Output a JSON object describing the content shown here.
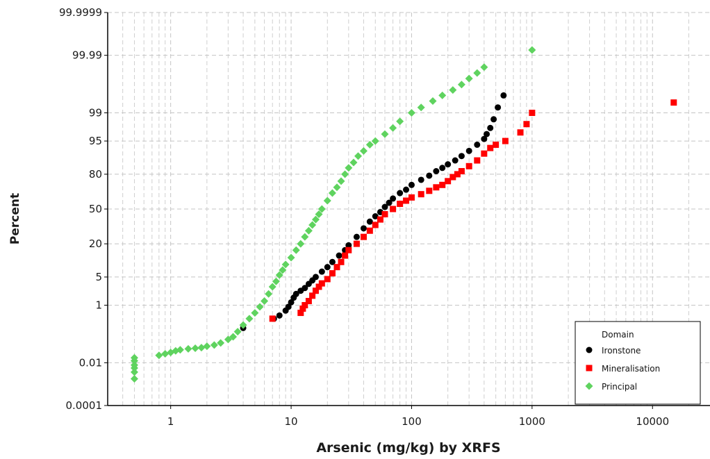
{
  "chart_data": {
    "type": "scatter",
    "title": "",
    "xlabel": "Arsenic (mg/kg) by XRFS",
    "ylabel": "Percent",
    "x_scale": "log",
    "y_scale": "probability",
    "xlim": [
      0.3,
      30000
    ],
    "ylim": [
      0.0001,
      99.9999
    ],
    "x_ticks": [
      1,
      10,
      100,
      1000,
      10000
    ],
    "x_tick_labels": [
      "1",
      "10",
      "100",
      "1000",
      "10000"
    ],
    "y_ticks": [
      0.0001,
      0.01,
      1,
      5,
      20,
      50,
      80,
      95,
      99,
      99.99,
      99.9999
    ],
    "y_tick_labels": [
      "0.0001",
      "0.01",
      "1",
      "5",
      "20",
      "50",
      "80",
      "95",
      "99",
      "99.99",
      "99.9999"
    ],
    "grid": true,
    "legend": {
      "title": "Domain",
      "position": "bottom-right"
    },
    "series": [
      {
        "name": "Ironstone",
        "color": "#000000",
        "marker": "circle",
        "points": [
          [
            4,
            0.2
          ],
          [
            7.2,
            0.4
          ],
          [
            8,
            0.5
          ],
          [
            9,
            0.7
          ],
          [
            9.5,
            0.9
          ],
          [
            10,
            1.2
          ],
          [
            10.5,
            1.6
          ],
          [
            11,
            2.0
          ],
          [
            12,
            2.4
          ],
          [
            13,
            2.8
          ],
          [
            14,
            3.5
          ],
          [
            15,
            4.2
          ],
          [
            16,
            5
          ],
          [
            18,
            6.5
          ],
          [
            20,
            8
          ],
          [
            22,
            10
          ],
          [
            25,
            13
          ],
          [
            28,
            16
          ],
          [
            30,
            19
          ],
          [
            35,
            25
          ],
          [
            40,
            32
          ],
          [
            45,
            38
          ],
          [
            50,
            43
          ],
          [
            55,
            47
          ],
          [
            60,
            52
          ],
          [
            65,
            56
          ],
          [
            70,
            60
          ],
          [
            80,
            65
          ],
          [
            90,
            68
          ],
          [
            100,
            72
          ],
          [
            120,
            76
          ],
          [
            140,
            79
          ],
          [
            160,
            82
          ],
          [
            180,
            84
          ],
          [
            200,
            86
          ],
          [
            230,
            88
          ],
          [
            260,
            90
          ],
          [
            300,
            92
          ],
          [
            350,
            94
          ],
          [
            400,
            95.5
          ],
          [
            420,
            96.5
          ],
          [
            450,
            97.5
          ],
          [
            480,
            98.5
          ],
          [
            520,
            99.3
          ],
          [
            580,
            99.7
          ]
        ]
      },
      {
        "name": "Mineralisation",
        "color": "#ff0000",
        "marker": "square",
        "points": [
          [
            7,
            0.4
          ],
          [
            12,
            0.6
          ],
          [
            12.5,
            0.8
          ],
          [
            13,
            1.0
          ],
          [
            14,
            1.3
          ],
          [
            15,
            1.8
          ],
          [
            16,
            2.4
          ],
          [
            17,
            3.0
          ],
          [
            18,
            3.6
          ],
          [
            20,
            4.5
          ],
          [
            22,
            6
          ],
          [
            24,
            8
          ],
          [
            26,
            10
          ],
          [
            28,
            13
          ],
          [
            30,
            16
          ],
          [
            35,
            20
          ],
          [
            40,
            25
          ],
          [
            45,
            30
          ],
          [
            50,
            35
          ],
          [
            55,
            40
          ],
          [
            60,
            45
          ],
          [
            70,
            50
          ],
          [
            80,
            55
          ],
          [
            90,
            58
          ],
          [
            100,
            61
          ],
          [
            120,
            64
          ],
          [
            140,
            67
          ],
          [
            160,
            70
          ],
          [
            180,
            72
          ],
          [
            200,
            75
          ],
          [
            220,
            78
          ],
          [
            240,
            80
          ],
          [
            260,
            82
          ],
          [
            300,
            85
          ],
          [
            350,
            88
          ],
          [
            400,
            91
          ],
          [
            450,
            93
          ],
          [
            500,
            94
          ],
          [
            600,
            95
          ],
          [
            800,
            96.8
          ],
          [
            900,
            98
          ],
          [
            1000,
            99
          ],
          [
            15000,
            99.5
          ]
        ]
      },
      {
        "name": "Principal",
        "color": "#5fd35f",
        "marker": "diamond",
        "points": [
          [
            0.5,
            0.002
          ],
          [
            0.5,
            0.004
          ],
          [
            0.5,
            0.006
          ],
          [
            0.5,
            0.008
          ],
          [
            0.5,
            0.012
          ],
          [
            0.5,
            0.016
          ],
          [
            0.8,
            0.02
          ],
          [
            0.9,
            0.023
          ],
          [
            1.0,
            0.026
          ],
          [
            1.1,
            0.03
          ],
          [
            1.2,
            0.033
          ],
          [
            1.4,
            0.036
          ],
          [
            1.6,
            0.038
          ],
          [
            1.8,
            0.04
          ],
          [
            2.0,
            0.045
          ],
          [
            2.3,
            0.05
          ],
          [
            2.6,
            0.06
          ],
          [
            3.0,
            0.08
          ],
          [
            3.3,
            0.1
          ],
          [
            3.6,
            0.15
          ],
          [
            4.0,
            0.25
          ],
          [
            4.5,
            0.4
          ],
          [
            5.0,
            0.6
          ],
          [
            5.5,
            0.9
          ],
          [
            6.0,
            1.3
          ],
          [
            6.5,
            2.0
          ],
          [
            7.0,
            3.0
          ],
          [
            7.5,
            4.0
          ],
          [
            8.0,
            5.5
          ],
          [
            8.5,
            7
          ],
          [
            9,
            9
          ],
          [
            10,
            12
          ],
          [
            11,
            16
          ],
          [
            12,
            20
          ],
          [
            13,
            25
          ],
          [
            14,
            30
          ],
          [
            15,
            35
          ],
          [
            16,
            40
          ],
          [
            17,
            45
          ],
          [
            18,
            50
          ],
          [
            20,
            58
          ],
          [
            22,
            65
          ],
          [
            24,
            70
          ],
          [
            26,
            75
          ],
          [
            28,
            80
          ],
          [
            30,
            84
          ],
          [
            33,
            87
          ],
          [
            36,
            90
          ],
          [
            40,
            92
          ],
          [
            45,
            94
          ],
          [
            50,
            95
          ],
          [
            60,
            96.5
          ],
          [
            70,
            97.5
          ],
          [
            80,
            98.3
          ],
          [
            100,
            99
          ],
          [
            120,
            99.3
          ],
          [
            150,
            99.55
          ],
          [
            180,
            99.7
          ],
          [
            220,
            99.8
          ],
          [
            260,
            99.87
          ],
          [
            300,
            99.92
          ],
          [
            350,
            99.95
          ],
          [
            400,
            99.97
          ],
          [
            1000,
            99.994
          ]
        ]
      }
    ]
  }
}
